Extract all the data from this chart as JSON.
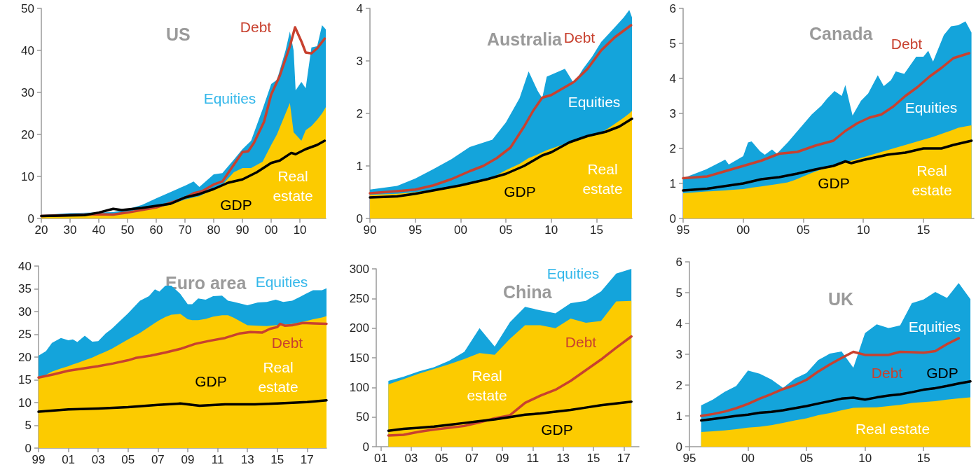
{
  "chart_data": [
    {
      "type": "area",
      "title": "US",
      "stacked": true,
      "grid": false,
      "legend": false,
      "marker": "none",
      "xlim": [
        1920,
        2019
      ],
      "ylim": [
        0,
        50
      ],
      "yticks": [
        0,
        10,
        20,
        30,
        40,
        50
      ],
      "xticks": [
        {
          "value": 1920,
          "label": "20"
        },
        {
          "value": 1930,
          "label": "30"
        },
        {
          "value": 1940,
          "label": "40"
        },
        {
          "value": 1950,
          "label": "50"
        },
        {
          "value": 1960,
          "label": "60"
        },
        {
          "value": 1970,
          "label": "70"
        },
        {
          "value": 1980,
          "label": "80"
        },
        {
          "value": 1990,
          "label": "90"
        },
        {
          "value": 2000,
          "label": "00"
        },
        {
          "value": 2010,
          "label": "10"
        }
      ],
      "x": [
        1920,
        1930,
        1940,
        1945,
        1950,
        1955,
        1960,
        1965,
        1970,
        1973,
        1975,
        1980,
        1983,
        1987,
        1990,
        1993,
        1997,
        2000,
        2002,
        2005,
        2006.5,
        2007.8,
        2008.5,
        2010.5,
        2012,
        2014,
        2016,
        2017.7,
        2019
      ],
      "series": [
        {
          "name": "Real estate",
          "color": "#fccb00",
          "values": [
            0.5,
            0.7,
            0.8,
            1.0,
            1.5,
            2.0,
            2.5,
            3.3,
            4.5,
            5.0,
            5.3,
            7.0,
            8.0,
            11.0,
            12.0,
            12.0,
            13.5,
            17.5,
            20,
            25,
            27.5,
            20.5,
            20,
            18.5,
            21,
            22,
            23.5,
            25,
            26.5
          ]
        },
        {
          "name": "Equities",
          "color": "#14a4db",
          "values": [
            0.3,
            0.6,
            0.6,
            0.5,
            0.7,
            1.2,
            2.3,
            3.0,
            3.3,
            3.8,
            2.2,
            3.5,
            2.8,
            3.0,
            4.5,
            6.5,
            12.5,
            14.5,
            13,
            15,
            17,
            19.5,
            10.5,
            14,
            10,
            18.7,
            17.5,
            21,
            18.5
          ]
        },
        {
          "name": "Debt",
          "type": "line",
          "color": "#c8412f",
          "line_style": "solid",
          "x": [
            1920,
            1939.5,
            1945,
            1950,
            1960,
            1969.5,
            1973,
            1976,
            1980,
            1983,
            1987,
            1990,
            1992,
            1994,
            1997.5,
            2000,
            2003,
            2006.5,
            2008.3,
            2010.6,
            2012,
            2014,
            2016,
            2018.6
          ],
          "values": [
            0.6,
            1.0,
            0.9,
            1.4,
            2.6,
            4.8,
            6.0,
            6.5,
            8.1,
            8.8,
            12.8,
            15.8,
            16.0,
            18,
            23,
            29.5,
            34,
            41,
            45.5,
            42,
            39.5,
            39.3,
            40.5,
            42.8
          ]
        },
        {
          "name": "GDP",
          "type": "line",
          "color": "#000000",
          "line_style": "solid",
          "x": [
            1920,
            1935,
            1940,
            1945,
            1948,
            1955,
            1960,
            1965,
            1970,
            1975,
            1980,
            1985,
            1990,
            1995,
            2000,
            2003,
            2007,
            2008.5,
            2012,
            2016,
            2018.6
          ],
          "values": [
            0.6,
            0.8,
            1.4,
            2.3,
            2.0,
            2.5,
            3.0,
            3.5,
            5.0,
            5.8,
            7.0,
            8.5,
            9.3,
            11,
            13.2,
            13.8,
            15.6,
            15.3,
            16.5,
            17.5,
            18.5
          ]
        }
      ]
    },
    {
      "type": "area",
      "title": "Australia",
      "stacked": true,
      "grid": false,
      "legend": false,
      "marker": "none",
      "xlim": [
        1990,
        2018.9
      ],
      "ylim": [
        0,
        4
      ],
      "yticks": [
        0,
        1,
        2,
        3,
        4
      ],
      "xticks": [
        {
          "value": 1990,
          "label": "90"
        },
        {
          "value": 1995,
          "label": "95"
        },
        {
          "value": 2000,
          "label": "00"
        },
        {
          "value": 2005,
          "label": "05"
        },
        {
          "value": 2010,
          "label": "10"
        },
        {
          "value": 2015,
          "label": "15"
        }
      ],
      "x": [
        1990,
        1993,
        1995,
        1997,
        1999,
        2001,
        2003.5,
        2005,
        2006.5,
        2007.5,
        2008.5,
        2009,
        2009.5,
        2011.5,
        2012.5,
        2013.5,
        2014.5,
        2015.5,
        2017,
        2018,
        2018.6,
        2018.9
      ],
      "series": [
        {
          "name": "Real estate",
          "color": "#fccb00",
          "values": [
            0.45,
            0.47,
            0.5,
            0.55,
            0.61,
            0.68,
            0.78,
            0.92,
            1.04,
            1.15,
            1.22,
            1.26,
            1.3,
            1.42,
            1.48,
            1.52,
            1.57,
            1.63,
            1.8,
            1.92,
            2.0,
            2.05
          ]
        },
        {
          "name": "Equities",
          "color": "#14a4db",
          "values": [
            0.1,
            0.15,
            0.26,
            0.39,
            0.52,
            0.68,
            0.72,
            0.91,
            1.25,
            1.65,
            1.21,
            1.03,
            1.4,
            1.43,
            1.09,
            1.33,
            1.51,
            1.73,
            1.84,
            1.91,
            1.97,
            1.78
          ]
        },
        {
          "name": "Debt",
          "type": "line",
          "color": "#c8412f",
          "line_style": "solid",
          "x": [
            1990,
            1993,
            1995,
            1997,
            1999,
            2001,
            2002.5,
            2004,
            2005.5,
            2007,
            2008,
            2009,
            2010,
            2011,
            2012.5,
            2014,
            2015.5,
            2017,
            2018.8
          ],
          "values": [
            0.48,
            0.52,
            0.55,
            0.63,
            0.75,
            0.9,
            1.0,
            1.15,
            1.35,
            1.75,
            2.05,
            2.3,
            2.35,
            2.45,
            2.6,
            2.85,
            3.2,
            3.45,
            3.68
          ]
        },
        {
          "name": "GDP",
          "type": "line",
          "color": "#000000",
          "line_style": "solid",
          "x": [
            1990,
            1993,
            1995,
            2000,
            2003,
            2005,
            2007,
            2009,
            2010,
            2012,
            2014,
            2016,
            2017.5,
            2018.9
          ],
          "values": [
            0.4,
            0.42,
            0.47,
            0.63,
            0.75,
            0.85,
            1.0,
            1.2,
            1.26,
            1.45,
            1.57,
            1.65,
            1.75,
            1.9
          ]
        }
      ]
    },
    {
      "type": "area",
      "title": "Canada",
      "stacked": true,
      "grid": false,
      "legend": false,
      "marker": "none",
      "xlim": [
        1995,
        2019.2
      ],
      "ylim": [
        0,
        6
      ],
      "yticks": [
        0,
        1,
        2,
        3,
        4,
        5,
        6
      ],
      "xticks": [
        {
          "value": 1995,
          "label": "95"
        },
        {
          "value": 2000,
          "label": "00"
        },
        {
          "value": 2005,
          "label": "05"
        },
        {
          "value": 2010,
          "label": "10"
        },
        {
          "value": 2015,
          "label": "15"
        }
      ],
      "x": [
        1995,
        1996.9,
        1998.5,
        1998.8,
        2000,
        2000.4,
        2000.7,
        2001.4,
        2001.8,
        2002.4,
        2002.8,
        2003.7,
        2004.3,
        2005.7,
        2006.5,
        2007,
        2007.6,
        2008.2,
        2008.5,
        2009.1,
        2009.8,
        2010.4,
        2011.2,
        2011.7,
        2012.3,
        2012.7,
        2013.4,
        2014.4,
        2015,
        2015.4,
        2015.8,
        2016.7,
        2017.3,
        2017.9,
        2018.5,
        2019
      ],
      "series": [
        {
          "name": "Real estate",
          "color": "#fccb00",
          "values": [
            0.72,
            0.77,
            0.8,
            0.81,
            0.84,
            0.86,
            0.88,
            0.91,
            0.93,
            0.96,
            0.98,
            1.03,
            1.1,
            1.3,
            1.4,
            1.45,
            1.51,
            1.57,
            1.6,
            1.66,
            1.73,
            1.79,
            1.87,
            1.92,
            1.98,
            2.02,
            2.09,
            2.19,
            2.25,
            2.29,
            2.33,
            2.44,
            2.51,
            2.59,
            2.63,
            2.66
          ]
        },
        {
          "name": "Equities",
          "color": "#14a4db",
          "values": [
            0.43,
            0.63,
            0.88,
            0.73,
            0.94,
            1.31,
            1.32,
            1.01,
            0.89,
            1.01,
            0.87,
            1.14,
            1.31,
            1.67,
            1.82,
            1.98,
            2.13,
            1.93,
            2.21,
            1.28,
            1.63,
            1.78,
            2.22,
            1.86,
            1.97,
            2.18,
            2.04,
            2.43,
            2.37,
            2.5,
            2.15,
            2.8,
            2.98,
            2.93,
            3.0,
            2.65
          ]
        },
        {
          "name": "Debt",
          "type": "line",
          "color": "#c8412f",
          "line_style": "solid",
          "x": [
            1995,
            1997,
            1998,
            2000,
            2001.5,
            2003,
            2004.5,
            2006,
            2007.5,
            2008.5,
            2009.5,
            2010.5,
            2011.5,
            2012.5,
            2013.5,
            2014.5,
            2015.5,
            2016.5,
            2017.5,
            2018.8
          ],
          "values": [
            1.15,
            1.2,
            1.3,
            1.5,
            1.65,
            1.85,
            1.9,
            2.08,
            2.22,
            2.5,
            2.72,
            2.88,
            2.97,
            3.2,
            3.5,
            3.75,
            4.05,
            4.3,
            4.58,
            4.72
          ]
        },
        {
          "name": "GDP",
          "type": "line",
          "color": "#000000",
          "line_style": "solid",
          "x": [
            1995,
            1997,
            1999,
            2000,
            2001.5,
            2003,
            2004.5,
            2006,
            2007.5,
            2008.5,
            2009,
            2010,
            2012,
            2013.5,
            2015,
            2016.5,
            2017.5,
            2019
          ],
          "values": [
            0.8,
            0.85,
            0.95,
            1.0,
            1.12,
            1.18,
            1.28,
            1.4,
            1.5,
            1.63,
            1.58,
            1.67,
            1.82,
            1.88,
            2.0,
            2.0,
            2.1,
            2.22
          ]
        }
      ]
    },
    {
      "type": "area",
      "title": "Euro area",
      "stacked": true,
      "grid": false,
      "legend": false,
      "marker": "none",
      "xlim": [
        1999,
        2018.3
      ],
      "ylim": [
        0,
        40
      ],
      "yticks": [
        0,
        5,
        10,
        15,
        20,
        25,
        30,
        35,
        40
      ],
      "xticks": [
        {
          "value": 1999,
          "label": "99"
        },
        {
          "value": 2001,
          "label": "01"
        },
        {
          "value": 2003,
          "label": "03"
        },
        {
          "value": 2005,
          "label": "05"
        },
        {
          "value": 2007,
          "label": "07"
        },
        {
          "value": 2009,
          "label": "09"
        },
        {
          "value": 2011,
          "label": "11"
        },
        {
          "value": 2013,
          "label": "13"
        },
        {
          "value": 2015,
          "label": "15"
        },
        {
          "value": 2017,
          "label": "17"
        }
      ],
      "x": [
        1999,
        1999.5,
        1999.9,
        2000.5,
        2001,
        2001.3,
        2001.6,
        2002.1,
        2002.6,
        2003,
        2003.5,
        2003.9,
        2005,
        2005.8,
        2006.4,
        2006.8,
        2007.1,
        2007.5,
        2007.9,
        2008.5,
        2009,
        2009.3,
        2009.7,
        2010.2,
        2010.7,
        2011.3,
        2011.7,
        2012.1,
        2013,
        2013.7,
        2014.3,
        2014.9,
        2015.4,
        2016,
        2016.5,
        2016.9,
        2017.4,
        2018,
        2018.3
      ],
      "series": [
        {
          "name": "Real estate",
          "color": "#fccb00",
          "values": [
            15.2,
            16.1,
            16.8,
            17.5,
            18.0,
            18.4,
            18.7,
            19.3,
            19.9,
            20.5,
            21.2,
            21.8,
            23.9,
            25.3,
            26.6,
            27.5,
            28.1,
            28.8,
            29.3,
            29.5,
            28.3,
            28.1,
            28.1,
            28.4,
            28.9,
            29.2,
            29.2,
            28.6,
            27.0,
            26.9,
            26.8,
            27.0,
            27.1,
            27.3,
            27.6,
            27.9,
            28.3,
            28.7,
            29.0
          ]
        },
        {
          "name": "Equities",
          "color": "#14a4db",
          "values": [
            5.1,
            5.2,
            6.3,
            6.7,
            5.7,
            5.5,
            4.6,
            5.4,
            3.5,
            3.0,
            4.0,
            4.4,
            5.7,
            7.1,
            6.8,
            7.4,
            6.3,
            6.9,
            6.4,
            4.4,
            3.3,
            3.5,
            4.8,
            4.2,
            4.5,
            4.3,
            3.2,
            3.5,
            4.4,
            5.1,
            5.3,
            5.6,
            5.0,
            5.1,
            5.6,
            6.0,
            6.4,
            6.0,
            6.1
          ]
        },
        {
          "name": "Debt",
          "type": "line",
          "color": "#c8412f",
          "line_style": "solid",
          "x": [
            1999,
            2000,
            2001,
            2002,
            2003,
            2004,
            2005,
            2005.5,
            2006.5,
            2007.5,
            2008.5,
            2009.5,
            2010.5,
            2011.5,
            2012.5,
            2013.2,
            2014,
            2014.5,
            2015,
            2015.2,
            2015.5,
            2016,
            2016.7,
            2017.5,
            2018.3
          ],
          "values": [
            15.5,
            16.2,
            17.0,
            17.5,
            18.0,
            18.6,
            19.3,
            19.8,
            20.3,
            21.0,
            21.8,
            22.9,
            23.6,
            24.2,
            25.2,
            25.5,
            25.4,
            26.2,
            26.6,
            27.3,
            26.9,
            27.0,
            27.5,
            27.4,
            27.3
          ]
        },
        {
          "name": "GDP",
          "type": "line",
          "color": "#000000",
          "line_style": "solid",
          "x": [
            1999,
            2001,
            2003,
            2005,
            2007,
            2008.5,
            2009.8,
            2011.5,
            2013.5,
            2015,
            2017,
            2018.3
          ],
          "values": [
            8.0,
            8.5,
            8.7,
            9.0,
            9.5,
            9.8,
            9.3,
            9.6,
            9.6,
            9.8,
            10.1,
            10.5
          ]
        }
      ]
    },
    {
      "type": "area",
      "title": "China",
      "stacked": true,
      "grid": false,
      "legend": false,
      "marker": "none",
      "xlim": [
        2000.7,
        2018
      ],
      "ylim": [
        0,
        300
      ],
      "yticks": [
        0,
        50,
        100,
        150,
        200,
        250,
        300
      ],
      "xticks": [
        {
          "value": 2001,
          "label": "01"
        },
        {
          "value": 2003,
          "label": "03"
        },
        {
          "value": 2005,
          "label": "05"
        },
        {
          "value": 2007,
          "label": "07"
        },
        {
          "value": 2009,
          "label": "09"
        },
        {
          "value": 2011,
          "label": "11"
        },
        {
          "value": 2013,
          "label": "13"
        },
        {
          "value": 2015,
          "label": "15"
        },
        {
          "value": 2017,
          "label": "17"
        }
      ],
      "x": [
        2001.5,
        2002.5,
        2003.5,
        2004.5,
        2005.5,
        2006.5,
        2007.5,
        2008.5,
        2009.5,
        2010.5,
        2011.5,
        2012.5,
        2013.5,
        2014.5,
        2015.5,
        2016.5,
        2017.5
      ],
      "series": [
        {
          "name": "Real estate",
          "color": "#fccb00",
          "values": [
            105,
            114,
            123,
            131,
            139,
            148,
            158,
            155,
            182,
            205,
            205,
            200,
            216,
            209,
            212,
            245,
            246
          ]
        },
        {
          "name": "Equities",
          "color": "#14a4db",
          "values": [
            6,
            4,
            4,
            3,
            6,
            12,
            42,
            14,
            28,
            31,
            25,
            25,
            26,
            37,
            50,
            47,
            54
          ]
        },
        {
          "name": "Debt",
          "type": "line",
          "color": "#c8412f",
          "line_style": "solid",
          "values": [
            19,
            20,
            25,
            29,
            32,
            35,
            41,
            48,
            53,
            74,
            86,
            96,
            111,
            129,
            147,
            167,
            186
          ]
        },
        {
          "name": "GDP",
          "type": "line",
          "color": "#000000",
          "line_style": "solid",
          "values": [
            27,
            30,
            32,
            34,
            37,
            40,
            43,
            46,
            50,
            54,
            56,
            59,
            62,
            66,
            70,
            73,
            76
          ]
        }
      ]
    },
    {
      "type": "area",
      "title": "UK",
      "stacked": true,
      "grid": false,
      "legend": false,
      "marker": "none",
      "xlim": [
        1995,
        2019
      ],
      "ylim": [
        0,
        6
      ],
      "yticks": [
        0,
        1,
        2,
        3,
        4,
        5,
        6
      ],
      "xticks": [
        {
          "value": 1995,
          "label": "95"
        },
        {
          "value": 2000,
          "label": "00"
        },
        {
          "value": 2005,
          "label": "05"
        },
        {
          "value": 2010,
          "label": "10"
        },
        {
          "value": 2015,
          "label": "15"
        }
      ],
      "x": [
        1996,
        1997,
        1998,
        1999,
        2000,
        2001,
        2002,
        2003,
        2004,
        2005,
        2006,
        2007,
        2008,
        2009,
        2010,
        2011,
        2012,
        2013,
        2014,
        2015,
        2016,
        2017,
        2018,
        2019
      ],
      "series": [
        {
          "name": "Real estate",
          "color": "#fccb00",
          "values": [
            0.48,
            0.5,
            0.53,
            0.57,
            0.62,
            0.65,
            0.7,
            0.77,
            0.85,
            0.92,
            1.02,
            1.09,
            1.18,
            1.26,
            1.27,
            1.28,
            1.32,
            1.36,
            1.42,
            1.45,
            1.48,
            1.53,
            1.57,
            1.6
          ]
        },
        {
          "name": "Equities",
          "color": "#14a4db",
          "values": [
            0.86,
            1.03,
            1.25,
            1.4,
            1.85,
            1.72,
            1.48,
            1.14,
            1.36,
            1.47,
            1.79,
            1.93,
            1.91,
            1.3,
            2.42,
            2.69,
            2.53,
            2.58,
            3.24,
            3.33,
            3.54,
            3.3,
            3.74,
            3.19
          ]
        },
        {
          "name": "Debt",
          "type": "line",
          "color": "#c8412f",
          "line_style": "solid",
          "values": [
            1.0,
            1.06,
            1.14,
            1.25,
            1.39,
            1.56,
            1.71,
            1.87,
            2.0,
            2.17,
            2.44,
            2.67,
            2.88,
            3.08,
            2.98,
            2.98,
            2.98,
            3.08,
            3.07,
            3.05,
            3.1,
            3.33,
            3.52,
            null
          ]
        },
        {
          "name": "GDP",
          "type": "line",
          "color": "#000000",
          "line_style": "solid",
          "values": [
            0.85,
            0.9,
            0.95,
            1.0,
            1.04,
            1.1,
            1.13,
            1.18,
            1.25,
            1.32,
            1.4,
            1.48,
            1.56,
            1.59,
            1.53,
            1.6,
            1.66,
            1.7,
            1.77,
            1.85,
            1.9,
            1.97,
            2.05,
            2.12
          ]
        }
      ]
    }
  ]
}
